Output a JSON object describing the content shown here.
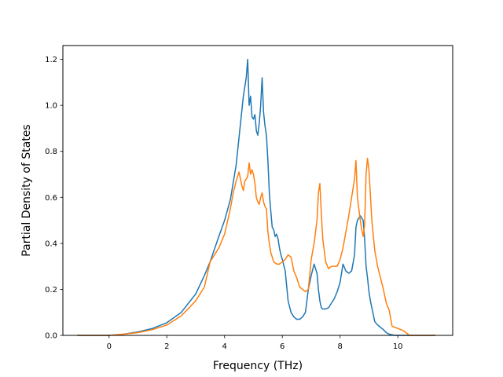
{
  "chart_data": {
    "type": "line",
    "title": "",
    "xlabel": "Frequency (THz)",
    "ylabel": "Partial Density of States",
    "xlim": [
      -1.6,
      11.9
    ],
    "ylim": [
      0.0,
      1.26
    ],
    "xticks": [
      0,
      2,
      4,
      6,
      8,
      10
    ],
    "yticks": [
      0.0,
      0.2,
      0.4,
      0.6,
      0.8,
      1.0,
      1.2
    ],
    "xtick_labels": [
      "0",
      "2",
      "4",
      "6",
      "8",
      "10"
    ],
    "ytick_labels": [
      "0.0",
      "0.2",
      "0.4",
      "0.6",
      "0.8",
      "1.0",
      "1.2"
    ],
    "grid": false,
    "legend": "none",
    "series": [
      {
        "color": "#1f77b4",
        "x": [
          -1.1,
          0.0,
          0.5,
          1.0,
          1.5,
          2.0,
          2.5,
          3.0,
          3.3,
          3.5,
          3.8,
          4.0,
          4.2,
          4.4,
          4.5,
          4.6,
          4.65,
          4.7,
          4.75,
          4.8,
          4.85,
          4.9,
          4.95,
          5.0,
          5.05,
          5.1,
          5.15,
          5.2,
          5.25,
          5.3,
          5.35,
          5.4,
          5.45,
          5.5,
          5.55,
          5.6,
          5.65,
          5.7,
          5.75,
          5.8,
          5.85,
          5.9,
          5.95,
          6.0,
          6.1,
          6.2,
          6.3,
          6.4,
          6.5,
          6.6,
          6.7,
          6.8,
          6.9,
          7.0,
          7.1,
          7.2,
          7.25,
          7.3,
          7.35,
          7.4,
          7.5,
          7.6,
          7.7,
          7.8,
          7.9,
          8.0,
          8.1,
          8.2,
          8.3,
          8.4,
          8.5,
          8.55,
          8.6,
          8.7,
          8.8,
          8.85,
          8.9,
          8.95,
          9.0,
          9.05,
          9.1,
          9.2,
          9.3,
          9.4,
          9.5,
          9.6,
          9.7,
          9.9,
          10.2,
          10.4,
          11.3
        ],
        "values": [
          0.0,
          0.0,
          0.005,
          0.015,
          0.03,
          0.055,
          0.1,
          0.18,
          0.26,
          0.32,
          0.43,
          0.5,
          0.59,
          0.74,
          0.86,
          0.98,
          1.04,
          1.08,
          1.12,
          1.2,
          1.0,
          1.04,
          0.95,
          0.94,
          0.96,
          0.89,
          0.87,
          0.92,
          1.0,
          1.12,
          0.97,
          0.91,
          0.87,
          0.76,
          0.62,
          0.54,
          0.47,
          0.46,
          0.43,
          0.44,
          0.42,
          0.38,
          0.35,
          0.33,
          0.28,
          0.15,
          0.1,
          0.08,
          0.07,
          0.07,
          0.08,
          0.1,
          0.2,
          0.26,
          0.31,
          0.27,
          0.2,
          0.15,
          0.12,
          0.115,
          0.115,
          0.12,
          0.14,
          0.16,
          0.19,
          0.23,
          0.31,
          0.28,
          0.27,
          0.28,
          0.35,
          0.47,
          0.5,
          0.52,
          0.5,
          0.42,
          0.3,
          0.25,
          0.19,
          0.15,
          0.12,
          0.06,
          0.045,
          0.035,
          0.025,
          0.012,
          0.005,
          0.0,
          0.0,
          0.0,
          0.0
        ]
      },
      {
        "color": "#ff7f0e",
        "x": [
          -1.1,
          0.0,
          0.5,
          1.0,
          1.5,
          2.0,
          2.5,
          3.0,
          3.3,
          3.5,
          3.8,
          4.0,
          4.2,
          4.3,
          4.4,
          4.5,
          4.6,
          4.65,
          4.7,
          4.75,
          4.8,
          4.85,
          4.9,
          4.95,
          5.0,
          5.05,
          5.1,
          5.15,
          5.2,
          5.25,
          5.3,
          5.35,
          5.4,
          5.45,
          5.5,
          5.55,
          5.6,
          5.7,
          5.8,
          5.9,
          6.0,
          6.1,
          6.2,
          6.3,
          6.4,
          6.5,
          6.6,
          6.7,
          6.8,
          6.9,
          7.0,
          7.1,
          7.2,
          7.25,
          7.3,
          7.35,
          7.4,
          7.5,
          7.6,
          7.7,
          7.8,
          7.9,
          8.0,
          8.1,
          8.2,
          8.3,
          8.4,
          8.5,
          8.55,
          8.6,
          8.7,
          8.75,
          8.8,
          8.85,
          8.9,
          8.95,
          9.0,
          9.1,
          9.2,
          9.3,
          9.4,
          9.5,
          9.6,
          9.7,
          9.8,
          9.9,
          10.2,
          10.4,
          11.3
        ],
        "values": [
          0.0,
          0.0,
          0.005,
          0.012,
          0.025,
          0.045,
          0.085,
          0.15,
          0.21,
          0.32,
          0.38,
          0.44,
          0.55,
          0.62,
          0.67,
          0.71,
          0.65,
          0.63,
          0.67,
          0.68,
          0.69,
          0.75,
          0.7,
          0.72,
          0.7,
          0.66,
          0.6,
          0.58,
          0.57,
          0.6,
          0.62,
          0.58,
          0.56,
          0.55,
          0.45,
          0.4,
          0.36,
          0.32,
          0.31,
          0.31,
          0.32,
          0.33,
          0.35,
          0.34,
          0.28,
          0.25,
          0.21,
          0.2,
          0.19,
          0.2,
          0.33,
          0.4,
          0.5,
          0.62,
          0.66,
          0.53,
          0.42,
          0.32,
          0.29,
          0.3,
          0.3,
          0.3,
          0.33,
          0.38,
          0.45,
          0.52,
          0.6,
          0.68,
          0.76,
          0.6,
          0.5,
          0.46,
          0.43,
          0.48,
          0.7,
          0.77,
          0.72,
          0.5,
          0.37,
          0.3,
          0.25,
          0.2,
          0.14,
          0.11,
          0.04,
          0.035,
          0.02,
          0.0,
          0.0
        ]
      }
    ]
  }
}
